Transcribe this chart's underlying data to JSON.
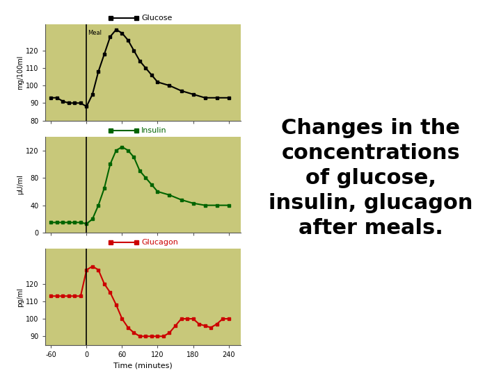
{
  "plot_bg_color": "#c8c87a",
  "fig_bg_color": "#ffffff",
  "glucose_x": [
    -60,
    -50,
    -40,
    -30,
    -20,
    -10,
    0,
    10,
    20,
    30,
    40,
    50,
    60,
    70,
    80,
    90,
    100,
    110,
    120,
    140,
    160,
    180,
    200,
    220,
    240
  ],
  "glucose_y": [
    93,
    93,
    91,
    90,
    90,
    90,
    88,
    95,
    108,
    118,
    128,
    132,
    130,
    126,
    120,
    114,
    110,
    106,
    102,
    100,
    97,
    95,
    93,
    93,
    93
  ],
  "glucose_color": "#000000",
  "glucose_label": "Glucose",
  "glucose_ylabel": "mg/100ml",
  "glucose_ylim": [
    80,
    135
  ],
  "glucose_yticks": [
    80,
    90,
    100,
    110,
    120
  ],
  "insulin_x": [
    -60,
    -50,
    -40,
    -30,
    -20,
    -10,
    0,
    10,
    20,
    30,
    40,
    50,
    60,
    70,
    80,
    90,
    100,
    110,
    120,
    140,
    160,
    180,
    200,
    220,
    240
  ],
  "insulin_y": [
    15,
    15,
    15,
    15,
    15,
    15,
    13,
    20,
    40,
    65,
    100,
    120,
    125,
    120,
    110,
    90,
    80,
    70,
    60,
    55,
    48,
    43,
    40,
    40,
    40
  ],
  "insulin_color": "#006400",
  "insulin_label": "Insulin",
  "insulin_ylabel": "μU/ml",
  "insulin_ylim": [
    0,
    140
  ],
  "insulin_yticks": [
    0,
    40,
    80,
    120
  ],
  "glucagon_x": [
    -60,
    -50,
    -40,
    -30,
    -20,
    -10,
    0,
    10,
    20,
    30,
    40,
    50,
    60,
    70,
    80,
    90,
    100,
    110,
    120,
    130,
    140,
    150,
    160,
    170,
    180,
    190,
    200,
    210,
    220,
    230,
    240
  ],
  "glucagon_y": [
    113,
    113,
    113,
    113,
    113,
    113,
    128,
    130,
    128,
    120,
    115,
    108,
    100,
    95,
    92,
    90,
    90,
    90,
    90,
    90,
    92,
    96,
    100,
    100,
    100,
    97,
    96,
    95,
    97,
    100,
    100
  ],
  "glucagon_color": "#cc0000",
  "glucagon_label": "Glucagon",
  "glucagon_ylabel": "pg/ml",
  "glucagon_ylim": [
    85,
    140
  ],
  "glucagon_yticks": [
    90,
    100,
    110,
    120
  ],
  "xlim": [
    -70,
    260
  ],
  "xticks": [
    -60,
    0,
    60,
    120,
    180,
    240
  ],
  "xticklabels": [
    "-60",
    "0",
    "60",
    "120",
    "180",
    "240"
  ],
  "xlabel": "Time (minutes)",
  "meal_label": "Meal",
  "title_text": "Changes in the\nconcentrations\nof glucose,\ninsulin, glucagon\nafter meals.",
  "title_fontsize": 22,
  "title_fontweight": "bold"
}
